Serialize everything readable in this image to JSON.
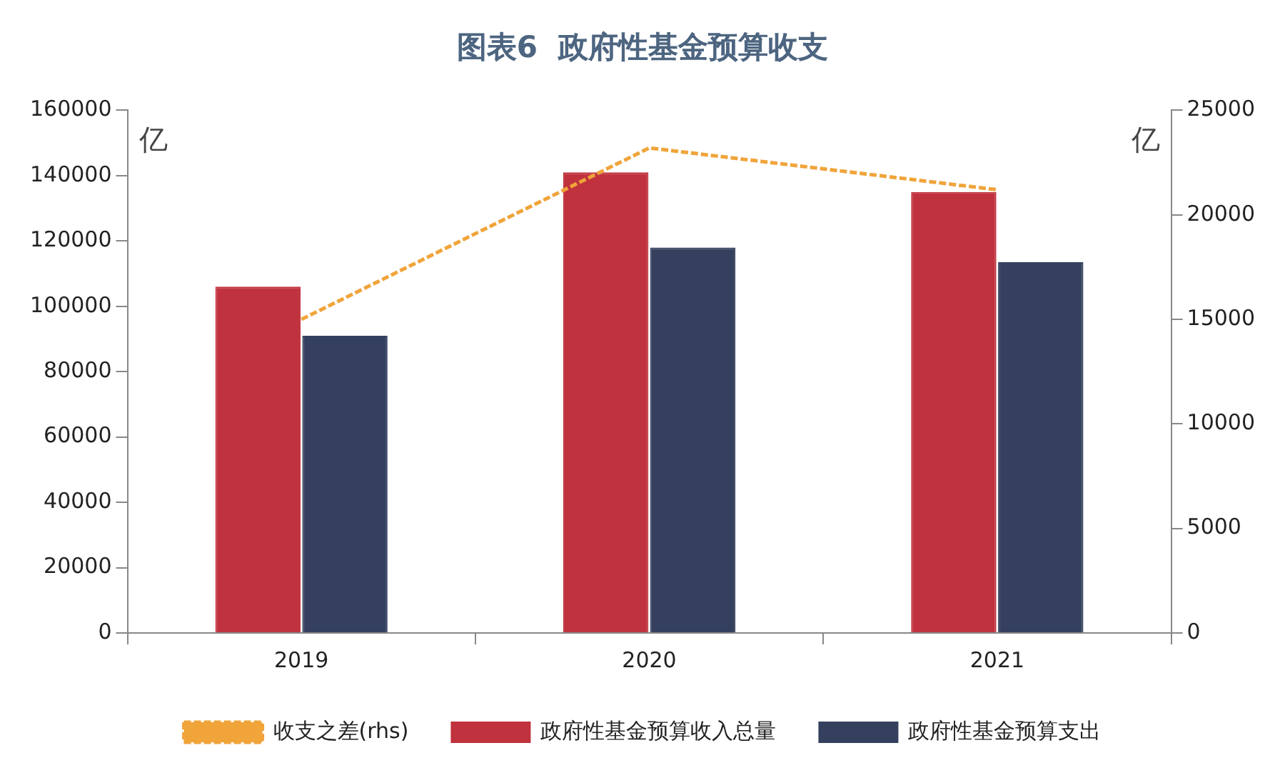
{
  "chart_data": {
    "type": "bar",
    "title": "图表6  政府性基金预算收支",
    "ylabel": "亿",
    "y2label": "亿",
    "categories": [
      "2019",
      "2020",
      "2021"
    ],
    "series": [
      {
        "name": "政府性基金预算收入总量",
        "color": "#c0323e",
        "values": [
          106000,
          141000,
          135000
        ]
      },
      {
        "name": "政府性基金预算支出",
        "color": "#34405e",
        "values": [
          91000,
          118000,
          113500
        ]
      },
      {
        "name": "收支之差(rhs)",
        "type": "line",
        "axis": "y2",
        "color": "#f0a43a",
        "line_style": "dashed",
        "values": [
          15000,
          23200,
          21200
        ]
      }
    ],
    "ylim": [
      0,
      160000
    ],
    "yticks": [
      0,
      20000,
      40000,
      60000,
      80000,
      100000,
      120000,
      140000,
      160000
    ],
    "y2lim": [
      0,
      25000
    ],
    "y2ticks": [
      0,
      5000,
      10000,
      15000,
      20000,
      25000
    ],
    "grid": false,
    "legend": "bottom",
    "marker": "none"
  }
}
